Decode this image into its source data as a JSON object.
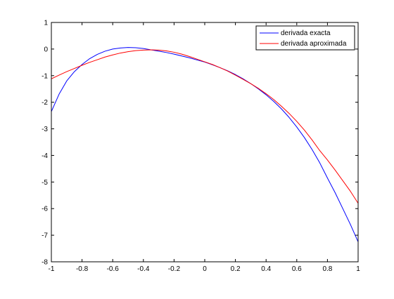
{
  "chart_data": {
    "type": "line",
    "title": "",
    "xlabel": "",
    "ylabel": "",
    "xlim": [
      -1,
      1
    ],
    "ylim": [
      -8,
      1
    ],
    "xticks": [
      -1,
      -0.8,
      -0.6,
      -0.4,
      -0.2,
      0,
      0.2,
      0.4,
      0.6,
      0.8,
      1
    ],
    "xtick_labels": [
      "-1",
      "-0.8",
      "-0.6",
      "-0.4",
      "-0.2",
      "0",
      "0.2",
      "0.4",
      "0.6",
      "0.8",
      "1"
    ],
    "yticks": [
      -8,
      -7,
      -6,
      -5,
      -4,
      -3,
      -2,
      -1,
      0,
      1
    ],
    "ytick_labels": [
      "-8",
      "-7",
      "-6",
      "-5",
      "-4",
      "-3",
      "-2",
      "-1",
      "0",
      "1"
    ],
    "grid": false,
    "legend_position": "top-right",
    "series": [
      {
        "name": "derivada exacta",
        "color": "#0000ff",
        "x": [
          -1,
          -0.95,
          -0.9,
          -0.85,
          -0.8,
          -0.75,
          -0.7,
          -0.65,
          -0.6,
          -0.55,
          -0.5,
          -0.45,
          -0.4,
          -0.35,
          -0.3,
          -0.25,
          -0.2,
          -0.15,
          -0.1,
          -0.05,
          0,
          0.05,
          0.1,
          0.15,
          0.2,
          0.25,
          0.3,
          0.35,
          0.4,
          0.45,
          0.5,
          0.55,
          0.6,
          0.65,
          0.7,
          0.75,
          0.8,
          0.85,
          0.9,
          0.95,
          1
        ],
        "y": [
          -2.35,
          -1.7,
          -1.2,
          -0.85,
          -0.58,
          -0.36,
          -0.2,
          -0.08,
          0.0,
          0.04,
          0.06,
          0.05,
          0.02,
          -0.03,
          -0.08,
          -0.13,
          -0.19,
          -0.26,
          -0.33,
          -0.41,
          -0.49,
          -0.59,
          -0.7,
          -0.82,
          -0.96,
          -1.12,
          -1.3,
          -1.5,
          -1.72,
          -1.97,
          -2.25,
          -2.57,
          -2.93,
          -3.33,
          -3.78,
          -4.28,
          -4.85,
          -5.4,
          -6.0,
          -6.6,
          -7.25
        ]
      },
      {
        "name": "derivada aproximada",
        "color": "#ff0000",
        "x": [
          -1,
          -0.95,
          -0.9,
          -0.85,
          -0.8,
          -0.75,
          -0.7,
          -0.65,
          -0.6,
          -0.55,
          -0.5,
          -0.45,
          -0.4,
          -0.35,
          -0.3,
          -0.25,
          -0.2,
          -0.15,
          -0.1,
          -0.05,
          0,
          0.05,
          0.1,
          0.15,
          0.2,
          0.25,
          0.3,
          0.35,
          0.4,
          0.45,
          0.5,
          0.55,
          0.6,
          0.65,
          0.7,
          0.75,
          0.8,
          0.85,
          0.9,
          0.95,
          1
        ],
        "y": [
          -1.12,
          -0.98,
          -0.85,
          -0.73,
          -0.61,
          -0.5,
          -0.4,
          -0.3,
          -0.22,
          -0.15,
          -0.1,
          -0.06,
          -0.04,
          -0.03,
          -0.04,
          -0.07,
          -0.12,
          -0.19,
          -0.28,
          -0.38,
          -0.48,
          -0.58,
          -0.7,
          -0.83,
          -0.98,
          -1.14,
          -1.3,
          -1.48,
          -1.68,
          -1.9,
          -2.15,
          -2.42,
          -2.72,
          -3.05,
          -3.42,
          -3.82,
          -4.17,
          -4.55,
          -4.95,
          -5.35,
          -5.8
        ]
      }
    ]
  }
}
